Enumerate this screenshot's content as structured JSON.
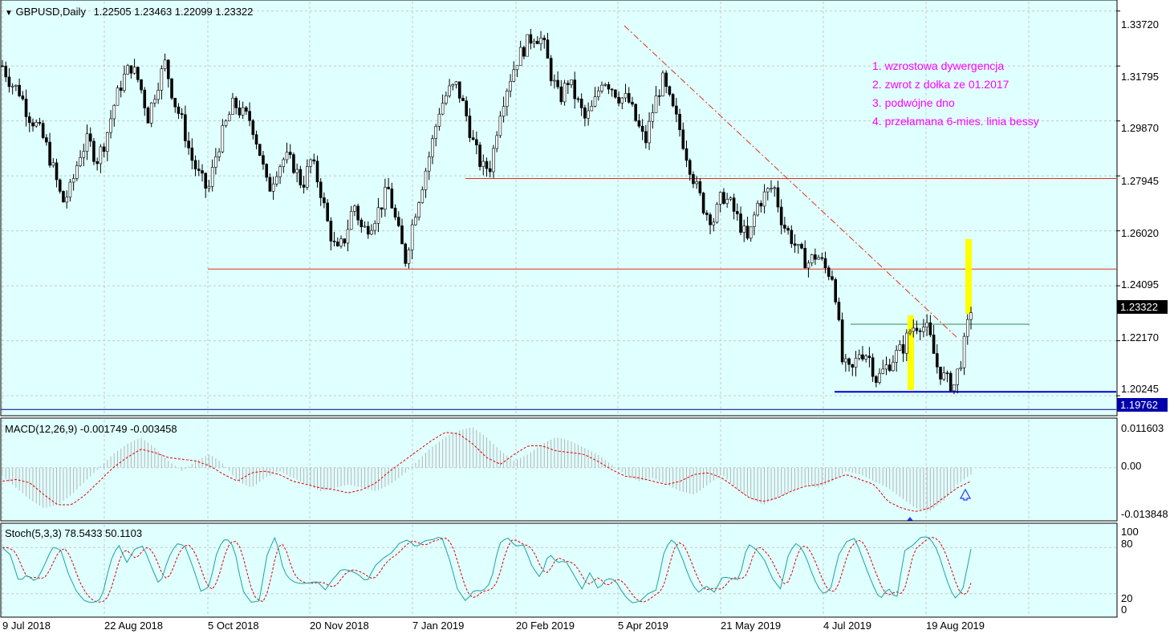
{
  "header": {
    "symbol_label": "GBPUSD,Daily",
    "ohlc": "1.22505 1.23463 1.22099 1.23322"
  },
  "annotations": [
    "1. wzrostowa dywergencja",
    "2. zwrot z dołka ze 01.2017",
    "3. podwójne dno",
    "4. przełamana 6-mies. linia bessy"
  ],
  "price_axis": {
    "ticks": [
      "1.33720",
      "1.31795",
      "1.29870",
      "1.27945",
      "1.26020",
      "1.24095",
      "1.22170",
      "1.20245"
    ],
    "current_price": "1.23322",
    "line_price": "1.19762"
  },
  "macd_panel": {
    "label": "MACD(12,26,9) -0.001749 -0.003458",
    "ticks": [
      "0.011603",
      "0.00",
      "-0.013848"
    ]
  },
  "stoch_panel": {
    "label": "Stoch(5,3,3) 78.5433 50.1103",
    "ticks": [
      "100",
      "80",
      "20",
      "0"
    ]
  },
  "x_axis": {
    "labels": [
      "9 Jul 2018",
      "22 Aug 2018",
      "5 Oct 2018",
      "20 Nov 2018",
      "7 Jan 2019",
      "20 Feb 2019",
      "5 Apr 2019",
      "21 May 2019",
      "4 Jul 2019",
      "19 Aug 2019"
    ]
  },
  "chart_data": {
    "type": "candlestick",
    "instrument": "GBPUSD",
    "timeframe": "Daily",
    "y_range": [
      1.196,
      1.3405
    ],
    "x_labels": [
      "9 Jul 2018",
      "22 Aug 2018",
      "5 Oct 2018",
      "20 Nov 2018",
      "7 Jan 2019",
      "20 Feb 2019",
      "5 Apr 2019",
      "21 May 2019",
      "4 Jul 2019",
      "19 Aug 2019"
    ],
    "close_path": [
      1.318,
      1.312,
      1.309,
      1.301,
      1.297,
      1.291,
      1.281,
      1.27,
      1.275,
      1.287,
      1.292,
      1.285,
      1.292,
      1.304,
      1.313,
      1.318,
      1.312,
      1.3,
      1.311,
      1.319,
      1.306,
      1.298,
      1.286,
      1.279,
      1.274,
      1.288,
      1.297,
      1.305,
      1.301,
      1.299,
      1.288,
      1.274,
      1.282,
      1.286,
      1.283,
      1.276,
      1.285,
      1.276,
      1.262,
      1.252,
      1.258,
      1.27,
      1.26,
      1.263,
      1.268,
      1.275,
      1.262,
      1.25,
      1.265,
      1.277,
      1.289,
      1.303,
      1.309,
      1.311,
      1.302,
      1.29,
      1.282,
      1.283,
      1.302,
      1.312,
      1.32,
      1.325,
      1.329,
      1.327,
      1.315,
      1.306,
      1.313,
      1.306,
      1.299,
      1.304,
      1.314,
      1.311,
      1.307,
      1.306,
      1.298,
      1.291,
      1.304,
      1.313,
      1.304,
      1.296,
      1.285,
      1.275,
      1.267,
      1.264,
      1.273,
      1.269,
      1.263,
      1.256,
      1.269,
      1.273,
      1.276,
      1.263,
      1.258,
      1.252,
      1.249,
      1.252,
      1.247,
      1.244,
      1.214,
      1.21,
      1.218,
      1.217,
      1.208,
      1.212,
      1.216,
      1.219,
      1.226,
      1.228,
      1.225,
      1.213,
      1.208,
      1.206,
      1.217,
      1.233
    ],
    "overlay_lines": {
      "resistance_1": 1.2785,
      "resistance_2": 1.2468,
      "neckline": 1.2275,
      "support_double_bottom": 1.2038,
      "price_line": 1.19762
    },
    "macd": {
      "params": "12,26,9",
      "main": -0.001749,
      "signal": -0.003458,
      "ylim": [
        -0.013848,
        0.011603
      ],
      "histogram": [
        -0.0025,
        -0.006,
        -0.0095,
        -0.012,
        -0.011,
        -0.008,
        -0.004,
        0.0,
        0.004,
        0.007,
        0.009,
        0.006,
        0.002,
        -0.001,
        0.002,
        0.004,
        0.001,
        -0.004,
        -0.006,
        -0.003,
        -0.001,
        -0.003,
        -0.005,
        -0.007,
        -0.006,
        -0.005,
        -0.006,
        -0.007,
        -0.005,
        -0.002,
        0.002,
        0.006,
        0.009,
        0.011,
        0.012,
        0.009,
        0.005,
        0.002,
        0.004,
        0.007,
        0.009,
        0.008,
        0.006,
        0.004,
        0.001,
        -0.002,
        -0.004,
        -0.003,
        -0.005,
        -0.007,
        -0.008,
        -0.005,
        -0.002,
        -0.006,
        -0.009,
        -0.011,
        -0.009,
        -0.007,
        -0.005,
        -0.006,
        -0.004,
        -0.001,
        -0.002,
        -0.004,
        -0.006,
        -0.009,
        -0.012,
        -0.013,
        -0.01,
        -0.005,
        -0.002
      ],
      "signal_line": [
        -0.004,
        -0.0035,
        -0.0045,
        -0.008,
        -0.011,
        -0.011,
        -0.008,
        -0.004,
        0.0,
        0.003,
        0.0055,
        0.0045,
        0.003,
        0.0025,
        0.002,
        0.0005,
        -0.002,
        -0.004,
        -0.0015,
        -0.001,
        -0.002,
        -0.004,
        -0.005,
        -0.006,
        -0.0065,
        -0.0075,
        -0.0065,
        -0.0045,
        -0.001,
        0.002,
        0.005,
        0.008,
        0.0105,
        0.01,
        0.007,
        0.003,
        0.001,
        0.004,
        0.0065,
        0.0065,
        0.005,
        0.0045,
        0.004,
        0.002,
        -0.0005,
        -0.0025,
        -0.003,
        -0.004,
        -0.005,
        -0.004,
        -0.002,
        -0.0015,
        -0.003,
        -0.006,
        -0.009,
        -0.01,
        -0.009,
        -0.007,
        -0.0055,
        -0.005,
        -0.0035,
        -0.002,
        -0.0035,
        -0.005,
        -0.01,
        -0.012,
        -0.013,
        -0.012,
        -0.009,
        -0.006,
        -0.004
      ]
    },
    "stochastic": {
      "params": "5,3,3",
      "main": 78.5433,
      "signal": 50.1103,
      "ylim": [
        0,
        100
      ],
      "levels": [
        20,
        80
      ],
      "main_line": [
        80,
        70,
        35,
        45,
        35,
        55,
        80,
        78,
        45,
        22,
        10,
        8,
        14,
        60,
        85,
        60,
        78,
        82,
        55,
        30,
        65,
        85,
        83,
        55,
        22,
        30,
        78,
        93,
        80,
        25,
        9,
        10,
        72,
        95,
        48,
        36,
        33,
        34,
        36,
        25,
        40,
        52,
        50,
        45,
        35,
        56,
        66,
        73,
        86,
        90,
        80,
        89,
        90,
        95,
        65,
        25,
        10,
        25,
        23,
        35,
        85,
        93,
        82,
        83,
        55,
        40,
        73,
        60,
        63,
        45,
        26,
        48,
        25,
        40,
        38,
        20,
        8,
        10,
        20,
        25,
        78,
        92,
        70,
        40,
        21,
        30,
        22,
        42,
        40,
        38,
        85,
        78,
        65,
        40,
        26,
        73,
        87,
        70,
        40,
        20,
        24,
        70,
        88,
        92,
        63,
        35,
        12,
        28,
        12,
        76,
        83,
        94,
        93,
        75,
        40,
        13,
        25,
        78
      ]
    }
  }
}
